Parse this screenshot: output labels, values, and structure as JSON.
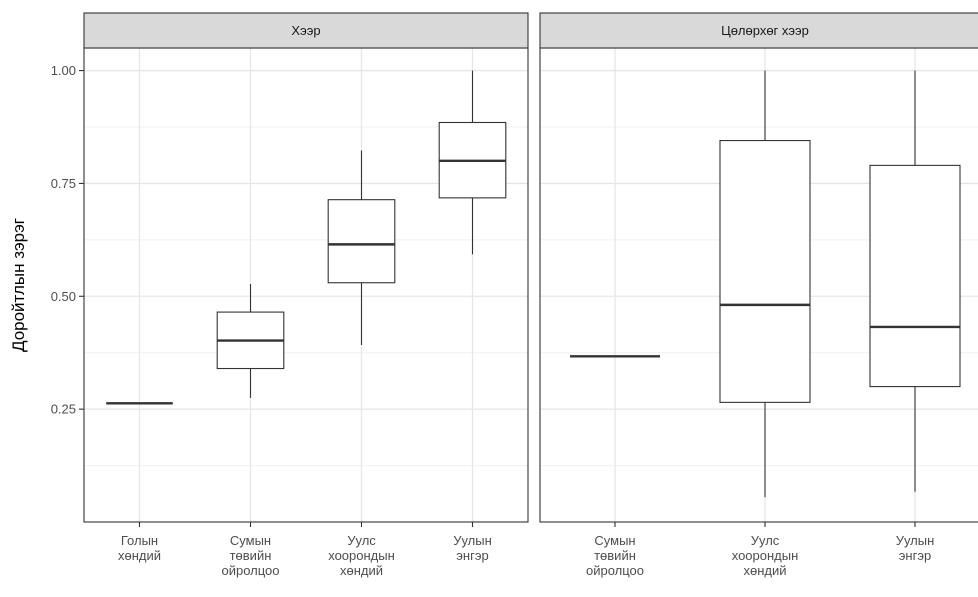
{
  "chart_data": {
    "type": "boxplot",
    "ylabel": "Доройтлын зэрэг",
    "xlabel": "",
    "ylim": [
      0.0,
      1.05
    ],
    "yticks": [
      0.25,
      0.5,
      0.75,
      1.0
    ],
    "ytick_labels": [
      "0.25",
      "0.50",
      "0.75",
      "1.00"
    ],
    "grid": true,
    "panels": [
      {
        "title": "Хээр",
        "categories": [
          [
            "Голын",
            "хөндий"
          ],
          [
            "Сумын",
            "төвийн",
            "ойролцоо"
          ],
          [
            "Уулс",
            "хоорондын",
            "хөндий"
          ],
          [
            "Уулын",
            "энгэр"
          ]
        ],
        "boxes": [
          {
            "min": 0.263,
            "q1": 0.263,
            "median": 0.263,
            "q3": 0.263,
            "max": 0.263
          },
          {
            "min": 0.275,
            "q1": 0.34,
            "median": 0.402,
            "q3": 0.465,
            "max": 0.527
          },
          {
            "min": 0.392,
            "q1": 0.53,
            "median": 0.615,
            "q3": 0.714,
            "max": 0.823
          },
          {
            "min": 0.593,
            "q1": 0.718,
            "median": 0.8,
            "q3": 0.885,
            "max": 1.0
          }
        ]
      },
      {
        "title": "Цөлөрхөг хээр",
        "categories": [
          [
            "Сумын",
            "төвийн",
            "ойролцоо"
          ],
          [
            "Уулс",
            "хоорондын",
            "хөндий"
          ],
          [
            "Уулын",
            "энгэр"
          ]
        ],
        "boxes": [
          {
            "min": 0.367,
            "q1": 0.367,
            "median": 0.367,
            "q3": 0.367,
            "max": 0.367
          },
          {
            "min": 0.055,
            "q1": 0.265,
            "median": 0.481,
            "q3": 0.845,
            "max": 1.0
          },
          {
            "min": 0.067,
            "q1": 0.3,
            "median": 0.432,
            "q3": 0.79,
            "max": 1.0
          }
        ]
      }
    ]
  }
}
